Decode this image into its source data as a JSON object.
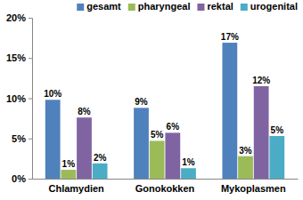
{
  "chart_data": {
    "type": "bar",
    "categories": [
      "Chlamydien",
      "Gonokokken",
      "Mykoplasmen"
    ],
    "series": [
      {
        "name": "gesamt",
        "color": "#4f81bd",
        "values": [
          9.8,
          8.8,
          16.9
        ],
        "value_labels": [
          "10%",
          "9%",
          "17%"
        ]
      },
      {
        "name": "pharyngeal",
        "color": "#9bbb59",
        "values": [
          1.1,
          4.7,
          2.8
        ],
        "value_labels": [
          "1%",
          "5%",
          "3%"
        ]
      },
      {
        "name": "rektal",
        "color": "#8064a2",
        "values": [
          7.6,
          5.7,
          11.5
        ],
        "value_labels": [
          "8%",
          "6%",
          "12%"
        ]
      },
      {
        "name": "urogenital",
        "color": "#4bacc6",
        "values": [
          1.9,
          1.3,
          5.3
        ],
        "value_labels": [
          "2%",
          "1%",
          "5%"
        ]
      }
    ],
    "ylim": [
      0,
      20
    ],
    "yticks": [
      {
        "value": 0,
        "label": "0%"
      },
      {
        "value": 5,
        "label": "5%"
      },
      {
        "value": 10,
        "label": "10%"
      },
      {
        "value": 15,
        "label": "15%"
      },
      {
        "value": 20,
        "label": "20%"
      }
    ],
    "grid": false,
    "legend": "top",
    "data_labels": true
  }
}
